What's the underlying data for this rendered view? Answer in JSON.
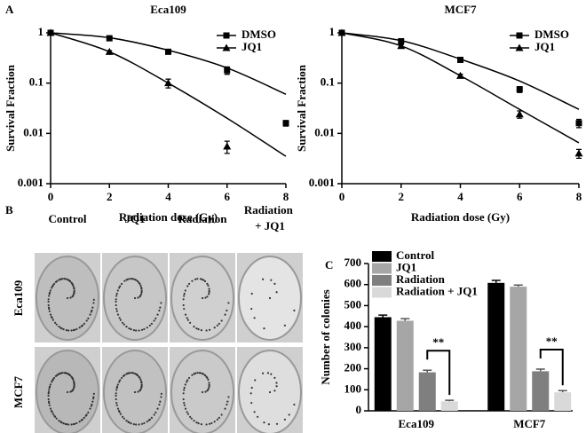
{
  "panel_labels": [
    "A",
    "B",
    "C"
  ],
  "chart_data": [
    {
      "type": "line",
      "title": "Eca109",
      "xlabel": "Radiation dose (Gy)",
      "ylabel": "Survival Fraction",
      "x": [
        0,
        2,
        4,
        6,
        8
      ],
      "xlim": [
        0,
        8
      ],
      "xticks": [
        0,
        2,
        4,
        6,
        8
      ],
      "ylim": [
        0.001,
        1
      ],
      "yticks": [
        1,
        0.1,
        0.01,
        0.001
      ],
      "log_y": true,
      "legend": "upper right",
      "series": [
        {
          "name": "DMSO",
          "marker": "square",
          "color": "#000000",
          "values": [
            1,
            0.78,
            0.42,
            0.18,
            0.016
          ],
          "errors": [
            0,
            0.04,
            0.03,
            0.03,
            0.002
          ],
          "fit_values": [
            1,
            0.8,
            0.45,
            0.2,
            0.06
          ]
        },
        {
          "name": "JQ1",
          "marker": "triangle",
          "color": "#000000",
          "values": [
            1,
            0.42,
            0.1,
            0.0055,
            null
          ],
          "errors": [
            0,
            0.02,
            0.02,
            0.0015,
            null
          ],
          "fit_values": [
            1,
            0.42,
            0.1,
            0.02,
            0.0035
          ]
        }
      ]
    },
    {
      "type": "line",
      "title": "MCF7",
      "xlabel": "Radiation dose (Gy)",
      "ylabel": "Survival Fraction",
      "x": [
        0,
        2,
        4,
        6,
        8
      ],
      "xlim": [
        0,
        8
      ],
      "xticks": [
        0,
        2,
        4,
        6,
        8
      ],
      "ylim": [
        0.001,
        1
      ],
      "yticks": [
        1,
        0.1,
        0.01,
        0.001
      ],
      "log_y": true,
      "legend": "upper right",
      "series": [
        {
          "name": "DMSO",
          "marker": "square",
          "color": "#000000",
          "values": [
            1,
            0.68,
            0.29,
            0.075,
            0.016
          ],
          "errors": [
            0,
            0.03,
            0.02,
            0.01,
            0.003
          ],
          "fit_values": [
            1,
            0.7,
            0.3,
            0.11,
            0.03
          ]
        },
        {
          "name": "JQ1",
          "marker": "triangle",
          "color": "#000000",
          "values": [
            1,
            0.55,
            0.14,
            0.024,
            0.004
          ],
          "errors": [
            0,
            0.03,
            0.01,
            0.004,
            0.0008
          ],
          "fit_values": [
            1,
            0.55,
            0.14,
            0.03,
            0.0065
          ]
        }
      ]
    },
    {
      "type": "bar",
      "ylabel": "Number of colonies",
      "categories": [
        "Eca109",
        "MCF7"
      ],
      "ylim": [
        0,
        700
      ],
      "yticks": [
        0,
        100,
        200,
        300,
        400,
        500,
        600,
        700
      ],
      "legend": "upper left",
      "series": [
        {
          "name": "Control",
          "color": "#000000",
          "values": [
            445,
            608
          ],
          "errors": [
            10,
            12
          ]
        },
        {
          "name": "JQ1",
          "color": "#a6a6a6",
          "values": [
            428,
            590
          ],
          "errors": [
            10,
            8
          ]
        },
        {
          "name": "Radiation",
          "color": "#7f7f7f",
          "values": [
            183,
            188
          ],
          "errors": [
            10,
            10
          ]
        },
        {
          "name": "Radiation + JQ1",
          "color": "#d9d9d9",
          "values": [
            45,
            88
          ],
          "errors": [
            5,
            8
          ]
        }
      ],
      "annotations": [
        "**",
        "**"
      ]
    }
  ],
  "panel_b": {
    "columns": [
      "Control",
      "JQ1",
      "Radiation",
      "Radiation + JQ1"
    ],
    "rows": [
      "Eca109",
      "MCF7"
    ]
  }
}
